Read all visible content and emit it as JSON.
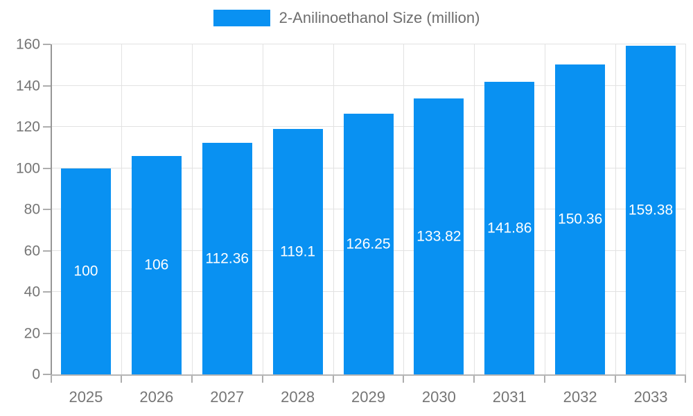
{
  "chart_data": {
    "type": "bar",
    "title": "",
    "categories": [
      "2025",
      "2026",
      "2027",
      "2028",
      "2029",
      "2030",
      "2031",
      "2032",
      "2033"
    ],
    "series": [
      {
        "name": "2-Anilinoethanol Size (million)",
        "values": [
          100,
          106,
          112.36,
          119.1,
          126.25,
          133.82,
          141.86,
          150.36,
          159.38
        ],
        "labels": [
          "100",
          "106",
          "112.36",
          "119.1",
          "126.25",
          "133.82",
          "141.86",
          "150.36",
          "159.38"
        ]
      }
    ],
    "xlabel": "",
    "ylabel": "",
    "ylim": [
      0,
      160
    ],
    "yticks": [
      0,
      20,
      40,
      60,
      80,
      100,
      120,
      140,
      160
    ],
    "grid": true,
    "legend_position": "top-center",
    "colors": {
      "bar": "#0991f2",
      "bar_label_text": "#ffffff",
      "axis_text": "#757575",
      "legend_text": "#6e6e6e",
      "grid_line": "#e2e2e2",
      "axis_line_y": "#969696",
      "axis_line_x": "#b5b5b5",
      "tick": "#adadad",
      "background": "#ffffff"
    }
  }
}
